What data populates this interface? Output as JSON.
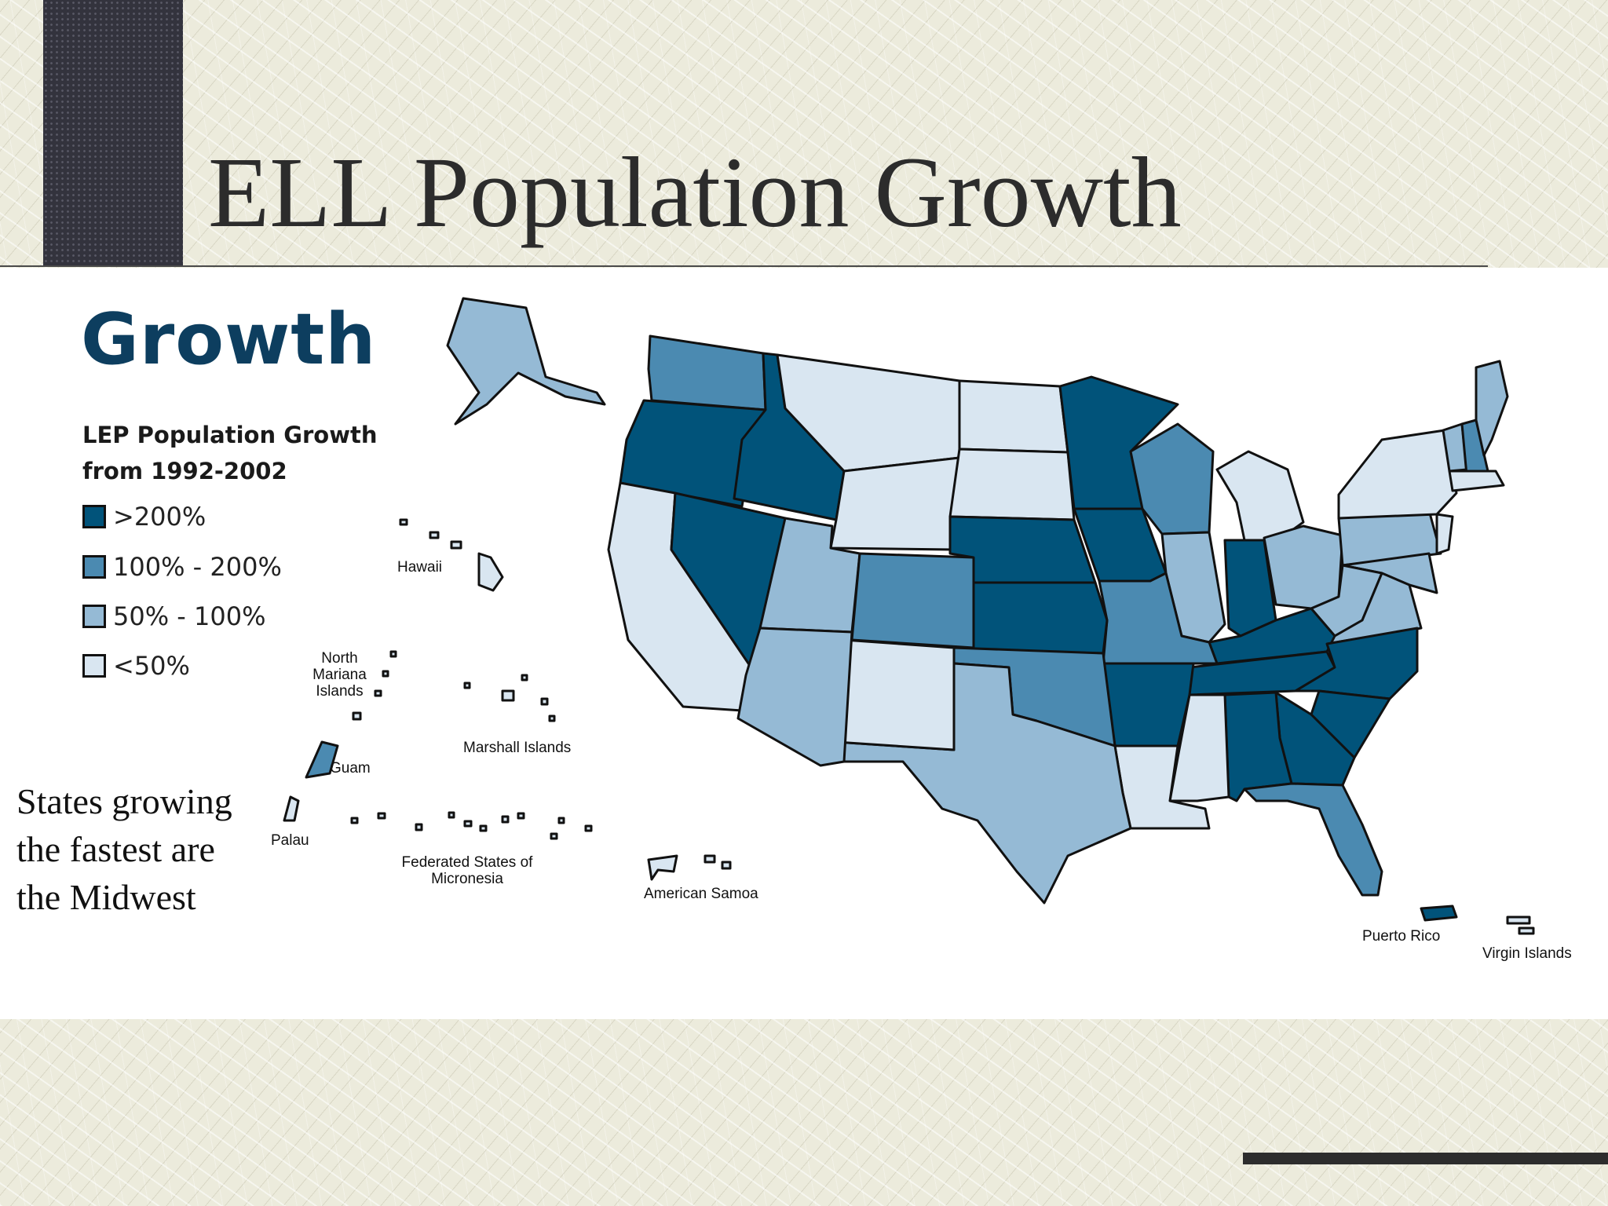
{
  "slide": {
    "title": "ELL Population Growth",
    "caption": "States growing the fastest are the Midwest"
  },
  "figure": {
    "heading": "Growth",
    "legend_title": "LEP Population Growth from 1992-2002",
    "legend": [
      {
        "label": ">200%",
        "color": "#01537a"
      },
      {
        "label": "100% - 200%",
        "color": "#4b8ab1"
      },
      {
        "label": "50% - 100%",
        "color": "#95bad5"
      },
      {
        "label": "<50%",
        "color": "#d9e6f1"
      }
    ],
    "territory_labels": {
      "hawaii": "Hawaii",
      "north_mariana": "North Mariana Islands",
      "guam": "Guam",
      "marshall": "Marshall Islands",
      "palau": "Palau",
      "micronesia": "Federated States of Micronesia",
      "american_samoa": "American Samoa",
      "puerto_rico": "Puerto Rico",
      "virgin_islands": "Virgin Islands"
    }
  },
  "map_data": {
    "category_colors": {
      ">200%": "#01537a",
      "100% - 200%": "#4b8ab1",
      "50% - 100%": "#95bad5",
      "<50%": "#d9e6f1"
    },
    "regions": {
      "Washington": "100% - 200%",
      "Oregon": ">200%",
      "Idaho": ">200%",
      "Montana": "<50%",
      "Wyoming": "<50%",
      "North Dakota": "<50%",
      "South Dakota": "<50%",
      "Minnesota": ">200%",
      "Wisconsin": "100% - 200%",
      "Michigan": "<50%",
      "California": "<50%",
      "Nevada": ">200%",
      "Utah": "50% - 100%",
      "Colorado": "100% - 200%",
      "Nebraska": ">200%",
      "Iowa": ">200%",
      "Illinois": "50% - 100%",
      "Indiana": ">200%",
      "Ohio": "50% - 100%",
      "Pennsylvania": "50% - 100%",
      "New York": "<50%",
      "Maine": "50% - 100%",
      "Vermont": "50% - 100%",
      "New Hampshire": "100% - 200%",
      "Massachusetts": "<50%",
      "New Jersey": "<50%",
      "Maryland": "50% - 100%",
      "West Virginia": "50% - 100%",
      "Virginia": "50% - 100%",
      "Kentucky": ">200%",
      "Tennessee": ">200%",
      "North Carolina": ">200%",
      "South Carolina": ">200%",
      "Georgia": ">200%",
      "Alabama": ">200%",
      "Mississippi": "<50%",
      "Louisiana": "<50%",
      "Arkansas": ">200%",
      "Missouri": "100% - 200%",
      "Kansas": ">200%",
      "Oklahoma": "100% - 200%",
      "Texas": "50% - 100%",
      "New Mexico": "<50%",
      "Arizona": "50% - 100%",
      "Florida": "100% - 200%",
      "Alaska": "50% - 100%",
      "Hawaii": "<50%",
      "Guam": "100% - 200%",
      "Puerto Rico": ">200%",
      "North Mariana Islands": "<50%",
      "Marshall Islands": "<50%",
      "Palau": "<50%",
      "Federated States of Micronesia": "<50%",
      "American Samoa": "<50%",
      "Virgin Islands": "<50%"
    }
  }
}
